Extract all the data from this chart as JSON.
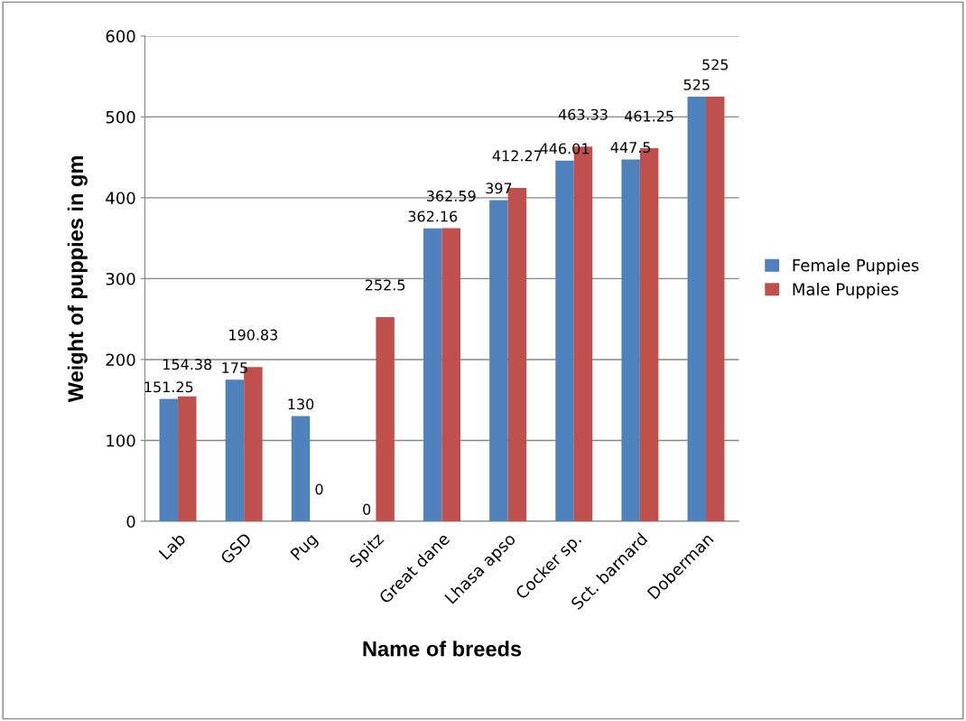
{
  "chart_data": {
    "type": "bar",
    "xlabel": "Name of breeds",
    "ylabel": "Weight of puppies in gm",
    "categories": [
      "Lab",
      "GSD",
      "Pug",
      "Spitz",
      "Great dane",
      "Lhasa apso",
      "Cocker sp.",
      "Sct. barnard",
      "Doberman"
    ],
    "series": [
      {
        "name": "Female Puppies",
        "color": "#4f81bd",
        "values": [
          151.25,
          175,
          130,
          0,
          362.16,
          397,
          446.01,
          447.5,
          525
        ]
      },
      {
        "name": "Male Puppies",
        "color": "#c0504d",
        "values": [
          154.38,
          190.83,
          0,
          252.5,
          362.59,
          412.27,
          463.33,
          461.25,
          525
        ]
      }
    ],
    "ylim": [
      0,
      600
    ],
    "yticks": [
      0,
      100,
      200,
      300,
      400,
      500,
      600
    ],
    "grid": "y",
    "legend": "right",
    "data_labels": true
  }
}
